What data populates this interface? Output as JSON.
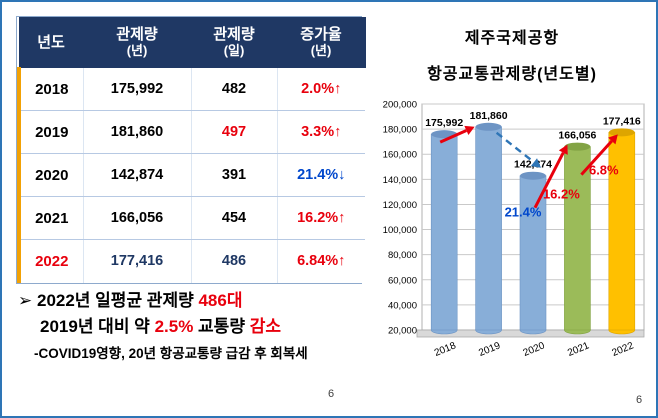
{
  "page": {
    "page_number_center": "6",
    "page_number_right": "6"
  },
  "colors": {
    "header_bg": "#1f3864",
    "header_text": "#ffffff",
    "accent_red": "#e8000d",
    "accent_navy": "#1f3864",
    "accent_blue": "#0047cc",
    "border_blue": "#2e75b6",
    "table_accent_orange": "#f2a104"
  },
  "table": {
    "headers": {
      "year": "년도",
      "yearly_line1": "관제량",
      "yearly_line2": "(년)",
      "daily_line1": "관제량",
      "daily_line2": "(일)",
      "growth_line1": "증가율",
      "growth_line2": "(년)"
    },
    "rows": [
      {
        "year": "2018",
        "yearly": "175,992",
        "daily": "482",
        "growth": "2.0%↑"
      },
      {
        "year": "2019",
        "yearly": "181,860",
        "daily": "497",
        "growth": "3.3%↑"
      },
      {
        "year": "2020",
        "yearly": "142,874",
        "daily": "391",
        "growth": "21.4%↓"
      },
      {
        "year": "2021",
        "yearly": "166,056",
        "daily": "454",
        "growth": "16.2%↑"
      },
      {
        "year": "2022",
        "yearly": "177,416",
        "daily": "486",
        "growth": "6.84%↑"
      }
    ]
  },
  "bullets": {
    "marker": "➢",
    "line1_pre": "2022년 일평균 관제량 ",
    "line1_red": "486대",
    "line2_pre": "2019년 대비 약 ",
    "line2_red1": "2.5%",
    "line2_mid": " 교통량 ",
    "line2_red2": "감소",
    "line3": "-COVID19영향, 20년 항공교통량 급감 후 회복세"
  },
  "chart_data": {
    "type": "bar",
    "title_line1": "제주국제공항",
    "title_line2": "항공교통관제량(년도별)",
    "categories": [
      "2018",
      "2019",
      "2020",
      "2021",
      "2022"
    ],
    "values": [
      175992,
      181860,
      142874,
      166056,
      177416
    ],
    "value_labels": [
      "175,992",
      "181,860",
      "142,874",
      "166,056",
      "177,416"
    ],
    "bar_colors": [
      "#88aed8",
      "#88aed8",
      "#88aed8",
      "#9bbb59",
      "#ffc000"
    ],
    "bar_top_colors": [
      "#6d94c4",
      "#6d94c4",
      "#6d94c4",
      "#82a344",
      "#dda500"
    ],
    "ylim": [
      20000,
      200000
    ],
    "ytick_step": 20000,
    "ytick_labels": [
      "20,000",
      "40,000",
      "60,000",
      "80,000",
      "100,000",
      "120,000",
      "140,000",
      "160,000",
      "180,000",
      "200,000"
    ],
    "xlabel": "",
    "ylabel": "",
    "grid": true,
    "legend": false,
    "annotations": [
      {
        "text": "21.4%",
        "color": "#0047cc",
        "bar_index": 2
      },
      {
        "text": "16.2%",
        "color": "#e8000d",
        "bar_index": 3
      },
      {
        "text": "6.8%",
        "color": "#e8000d",
        "bar_index": 4
      }
    ],
    "trend_arrows": [
      {
        "from": 0,
        "to": 1,
        "color": "#e8000d",
        "style": "solid"
      },
      {
        "from": 1,
        "to": 2,
        "color": "#2e75b6",
        "style": "dashed"
      },
      {
        "from": 2,
        "to": 3,
        "color": "#e8000d",
        "style": "solid"
      },
      {
        "from": 3,
        "to": 4,
        "color": "#e8000d",
        "style": "solid"
      }
    ]
  }
}
